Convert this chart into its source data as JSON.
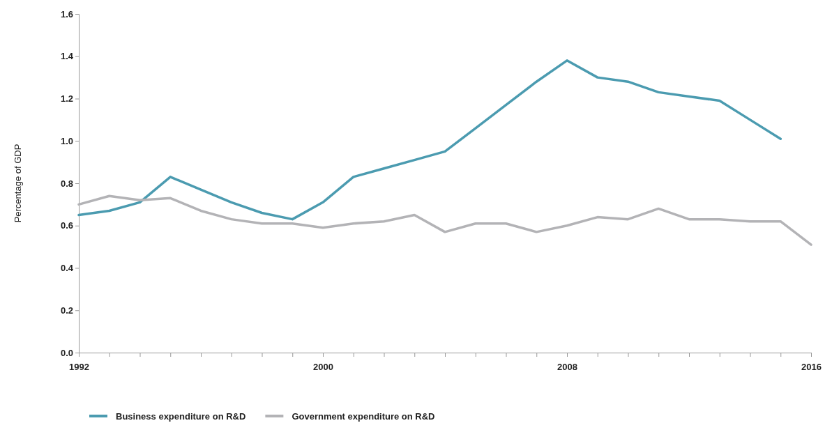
{
  "chart_data": {
    "type": "line",
    "ylabel": "Percentage of GDP",
    "xlim": [
      1992,
      2016
    ],
    "ylim": [
      0,
      1.6
    ],
    "xticks": [
      1992,
      {
        "value": 1993,
        "label": null
      },
      {
        "value": 1994,
        "label": null
      },
      {
        "value": 1995,
        "label": null
      },
      {
        "value": 1996,
        "label": null
      },
      {
        "value": 1997,
        "label": null
      },
      {
        "value": 1998,
        "label": null
      },
      {
        "value": 1999,
        "label": null
      },
      2000,
      {
        "value": 2001,
        "label": null
      },
      {
        "value": 2002,
        "label": null
      },
      {
        "value": 2003,
        "label": null
      },
      {
        "value": 2004,
        "label": null
      },
      {
        "value": 2005,
        "label": null
      },
      {
        "value": 2006,
        "label": null
      },
      {
        "value": 2007,
        "label": null
      },
      2008,
      {
        "value": 2009,
        "label": null
      },
      {
        "value": 2010,
        "label": null
      },
      {
        "value": 2011,
        "label": null
      },
      {
        "value": 2012,
        "label": null
      },
      {
        "value": 2013,
        "label": null
      },
      {
        "value": 2014,
        "label": null
      },
      {
        "value": 2015,
        "label": null
      },
      2016
    ],
    "yticks": [
      {
        "value": 0,
        "label": "0.0"
      },
      0.2,
      0.4,
      0.6,
      0.8,
      {
        "value": 1,
        "label": "1.0"
      },
      1.2,
      1.4,
      1.6
    ],
    "grid": false,
    "legend": "bottom",
    "marker": "none",
    "line_style": "solid",
    "series": [
      {
        "name": "Business expenditure on R&D",
        "color": "#4b9bb0",
        "x": [
          1992,
          1993,
          1994,
          1995,
          1996,
          1997,
          1998,
          1999,
          2000,
          2001,
          2002,
          2003,
          2004,
          2005,
          2006,
          2007,
          2008,
          2009,
          2010,
          2011,
          2012,
          2013,
          2014,
          2015
        ],
        "values": [
          0.65,
          0.67,
          0.71,
          0.83,
          0.77,
          0.71,
          0.66,
          0.63,
          0.71,
          0.83,
          0.87,
          0.91,
          0.95,
          1.06,
          1.17,
          1.28,
          1.38,
          1.3,
          1.28,
          1.23,
          1.21,
          1.19,
          1.1,
          1.01
        ]
      },
      {
        "name": "Government expenditure on R&D",
        "color": "#b3b3b6",
        "x": [
          1992,
          1993,
          1994,
          1995,
          1996,
          1997,
          1998,
          1999,
          2000,
          2001,
          2002,
          2003,
          2004,
          2005,
          2006,
          2007,
          2008,
          2009,
          2010,
          2011,
          2012,
          2013,
          2014,
          2015,
          2016
        ],
        "values": [
          0.7,
          0.74,
          0.72,
          0.73,
          0.67,
          0.63,
          0.61,
          0.61,
          0.59,
          0.61,
          0.62,
          0.65,
          0.57,
          0.61,
          0.61,
          0.57,
          0.6,
          0.64,
          0.63,
          0.68,
          0.63,
          0.63,
          0.62,
          0.62,
          0.51
        ]
      }
    ]
  }
}
